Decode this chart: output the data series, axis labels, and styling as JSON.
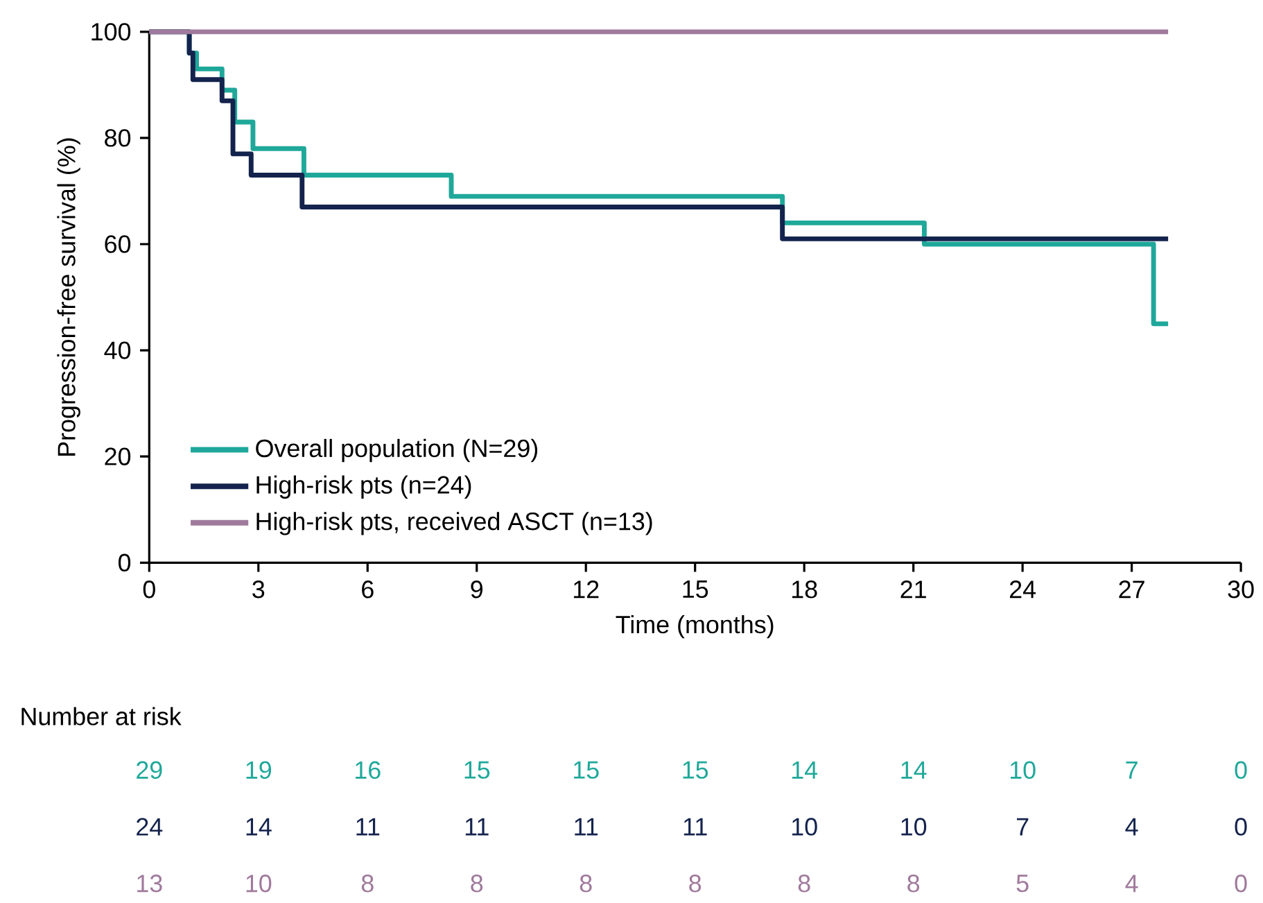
{
  "chart_data": {
    "type": "step",
    "xlabel": "Time (months)",
    "ylabel": "Progression-free survival (%)",
    "xlim": [
      0,
      30
    ],
    "ylim": [
      0,
      100
    ],
    "xticks": [
      0,
      3,
      6,
      9,
      12,
      15,
      18,
      21,
      24,
      27,
      30
    ],
    "yticks": [
      0,
      20,
      40,
      60,
      80,
      100
    ],
    "legend": "bottom left",
    "series": [
      {
        "name": "Overall population (N=29)",
        "color": "#1fa89a",
        "x": [
          0,
          1.1,
          1.3,
          2.0,
          2.35,
          2.85,
          4.25,
          8.3,
          17.4,
          21.3,
          27.6,
          28.0
        ],
        "values": [
          100,
          96,
          93,
          89,
          83,
          78,
          73,
          69,
          64,
          60,
          45,
          45
        ]
      },
      {
        "name": "High-risk pts (n=24)",
        "color": "#14234d",
        "x": [
          0,
          1.1,
          1.2,
          2.0,
          2.3,
          2.8,
          4.2,
          17.4,
          28.0
        ],
        "values": [
          100,
          96,
          91,
          87,
          77,
          73,
          67,
          61,
          61
        ]
      },
      {
        "name": "High-risk pts, received ASCT (n=13)",
        "color": "#a07a9c",
        "x": [
          0,
          28.0
        ],
        "values": [
          100,
          100
        ]
      }
    ],
    "annotations": [
      "Number at risk",
      "29",
      "19",
      "16",
      "15",
      "15",
      "15",
      "14",
      "14",
      "10",
      "7",
      "0",
      "24",
      "14",
      "11",
      "11",
      "11",
      "11",
      "10",
      "10",
      "7",
      "4",
      "0",
      "13",
      "10",
      "8",
      "8",
      "8",
      "8",
      "8",
      "8",
      "5",
      "4",
      "0"
    ]
  }
}
